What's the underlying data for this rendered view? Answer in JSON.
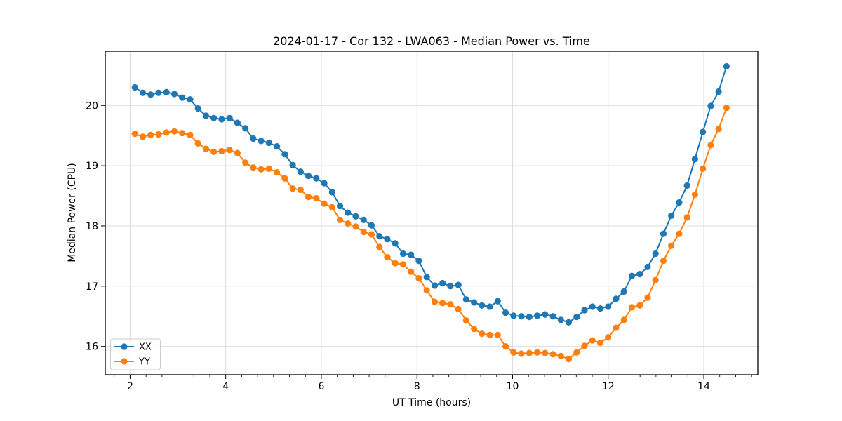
{
  "figure": {
    "background": "#ffffff",
    "frame_color": "#000000",
    "grid_color": "#dcdcdc",
    "legend_border_color": "#cccccc"
  },
  "chart_data": {
    "type": "line",
    "title": "2024-01-17 - Cor 132 - LWA063 - Median Power vs. Time",
    "xlabel": "UT Time (hours)",
    "ylabel": "Median Power (CPU)",
    "xlim": [
      1.48,
      15.13
    ],
    "ylim": [
      15.53,
      20.9
    ],
    "xticks": [
      2,
      4,
      6,
      8,
      10,
      12,
      14
    ],
    "x_minor_per_unit": 3,
    "yticks": [
      16,
      17,
      18,
      19,
      20
    ],
    "grid": true,
    "legend_position": "lower-left",
    "x": [
      2.1,
      2.265,
      2.43,
      2.595,
      2.76,
      2.925,
      3.09,
      3.255,
      3.42,
      3.585,
      3.75,
      3.915,
      4.08,
      4.245,
      4.41,
      4.575,
      4.74,
      4.905,
      5.07,
      5.235,
      5.4,
      5.565,
      5.73,
      5.895,
      6.06,
      6.225,
      6.39,
      6.555,
      6.72,
      6.885,
      7.05,
      7.215,
      7.38,
      7.545,
      7.71,
      7.875,
      8.04,
      8.205,
      8.37,
      8.535,
      8.7,
      8.865,
      9.03,
      9.195,
      9.36,
      9.525,
      9.69,
      9.855,
      10.02,
      10.185,
      10.35,
      10.515,
      10.68,
      10.845,
      11.01,
      11.175,
      11.34,
      11.505,
      11.67,
      11.835,
      12.0,
      12.165,
      12.33,
      12.495,
      12.66,
      12.825,
      12.99,
      13.155,
      13.32,
      13.485,
      13.65,
      13.815,
      13.98,
      14.145,
      14.31,
      14.475
    ],
    "series": [
      {
        "name": "XX",
        "color": "#1f77b4",
        "values": [
          20.3,
          20.21,
          20.18,
          20.21,
          20.22,
          20.19,
          20.13,
          20.1,
          19.95,
          19.83,
          19.79,
          19.77,
          19.79,
          19.71,
          19.62,
          19.45,
          19.41,
          19.38,
          19.32,
          19.19,
          19.01,
          18.9,
          18.83,
          18.79,
          18.71,
          18.56,
          18.33,
          18.22,
          18.16,
          18.1,
          18.01,
          17.83,
          17.78,
          17.71,
          17.54,
          17.52,
          17.42,
          17.15,
          17.01,
          17.05,
          17.0,
          17.02,
          16.78,
          16.73,
          16.68,
          16.66,
          16.75,
          16.56,
          16.51,
          16.5,
          16.49,
          16.51,
          16.53,
          16.5,
          16.44,
          16.4,
          16.49,
          16.6,
          16.66,
          16.63,
          16.66,
          16.79,
          16.91,
          17.17,
          17.2,
          17.32,
          17.54,
          17.87,
          18.17,
          18.39,
          18.67,
          19.11,
          19.56,
          19.99,
          20.23,
          20.65
        ]
      },
      {
        "name": "YY",
        "color": "#ff7f0e",
        "values": [
          19.53,
          19.48,
          19.51,
          19.52,
          19.55,
          19.57,
          19.54,
          19.51,
          19.37,
          19.28,
          19.23,
          19.24,
          19.26,
          19.21,
          19.05,
          18.97,
          18.94,
          18.95,
          18.89,
          18.79,
          18.62,
          18.6,
          18.48,
          18.46,
          18.37,
          18.31,
          18.1,
          18.04,
          17.99,
          17.9,
          17.86,
          17.65,
          17.48,
          17.38,
          17.36,
          17.24,
          17.13,
          16.93,
          16.74,
          16.72,
          16.7,
          16.62,
          16.43,
          16.29,
          16.21,
          16.19,
          16.19,
          16.0,
          15.9,
          15.88,
          15.89,
          15.9,
          15.89,
          15.87,
          15.84,
          15.79,
          15.9,
          16.01,
          16.1,
          16.06,
          16.15,
          16.31,
          16.44,
          16.65,
          16.68,
          16.81,
          17.1,
          17.42,
          17.67,
          17.87,
          18.14,
          18.52,
          18.95,
          19.34,
          19.61,
          19.96
        ]
      }
    ]
  }
}
